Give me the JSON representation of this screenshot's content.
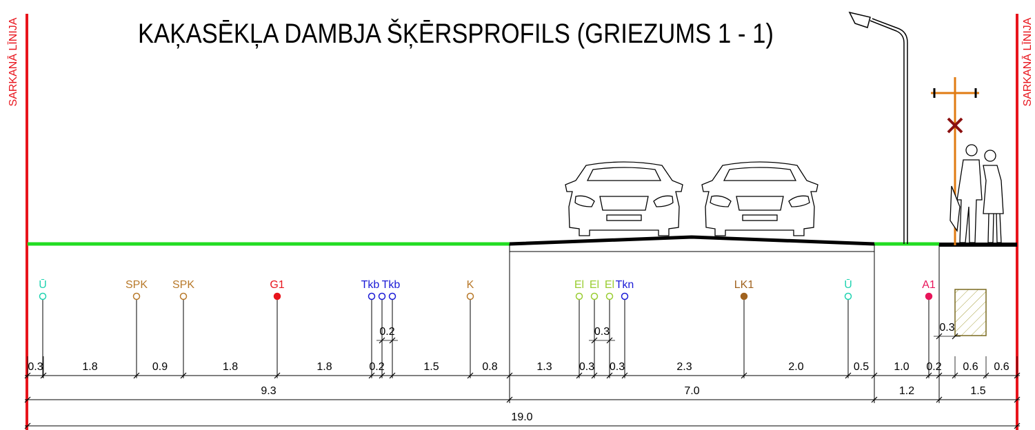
{
  "title": "KAĶASĒKĻA DAMBJA ŠĶĒRSPROFILS (GRIEZUMS 1 - 1)",
  "red_lines": {
    "left": "SARKANĀ LĪNIJA",
    "right": "SARKANĀ LĪNIJA"
  },
  "utilities": [
    {
      "label": "Ū",
      "color": "#1fd3b0",
      "filled": false
    },
    {
      "label": "SPK",
      "color": "#b8792a",
      "filled": false
    },
    {
      "label": "SPK",
      "color": "#b8792a",
      "filled": false
    },
    {
      "label": "G1",
      "color": "#e8141c",
      "filled": true
    },
    {
      "label": "Tkb",
      "color": "#1a1ad6",
      "filled": false
    },
    {
      "label": "Tkb",
      "color": "#1a1ad6",
      "filled": false
    },
    {
      "label": "K",
      "color": "#b8792a",
      "filled": false
    },
    {
      "label": "El",
      "color": "#9acd32",
      "filled": false
    },
    {
      "label": "El",
      "color": "#9acd32",
      "filled": false
    },
    {
      "label": "El",
      "color": "#9acd32",
      "filled": false
    },
    {
      "label": "Tkn",
      "color": "#1a1ad6",
      "filled": false
    },
    {
      "label": "LK1",
      "color": "#a0621e",
      "filled": true
    },
    {
      "label": "Ū",
      "color": "#1fd3b0",
      "filled": false
    },
    {
      "label": "A1",
      "color": "#e8145a",
      "filled": true
    }
  ],
  "dimensions": {
    "detail": [
      "0.3",
      "1.8",
      "0.9",
      "1.8",
      "1.8",
      "0.2",
      "0.2",
      "1.5",
      "0.8",
      "1.3",
      "0.3",
      "0.3",
      "0.3",
      "2.3",
      "2.0",
      "0.5",
      "1.0",
      "0.2",
      "0.3",
      "0.6",
      "0.6"
    ],
    "groups": [
      "9.3",
      "7.0",
      "1.2",
      "1.5"
    ],
    "total": "19.0"
  }
}
